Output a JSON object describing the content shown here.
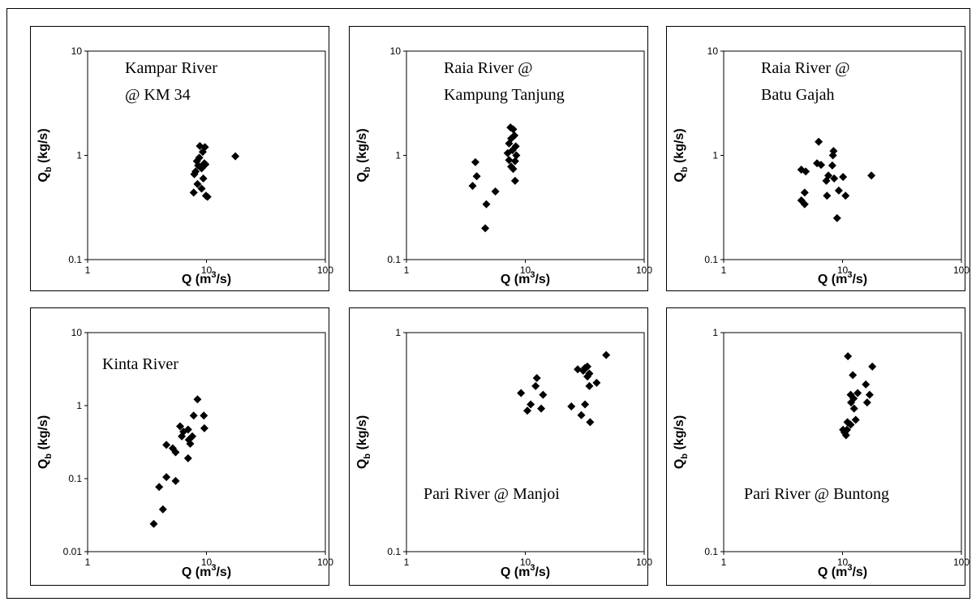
{
  "chart_data": [
    {
      "type": "scatter",
      "annotation": [
        "Kampar River",
        "@ KM 34"
      ],
      "xlabel": "Q (m3/s)",
      "ylabel": "Qb (kg/s)",
      "xscale": "log",
      "yscale": "log",
      "xlim": [
        1,
        100
      ],
      "ylim": [
        0.1,
        10
      ],
      "xticks": [
        "1",
        "10",
        "100"
      ],
      "yticks": [
        "0.1",
        "1",
        "10"
      ],
      "marker": "diamond",
      "color": "#000000",
      "grid": false,
      "points": [
        [
          8.8,
          1.23
        ],
        [
          9.7,
          1.2
        ],
        [
          9.3,
          1.08
        ],
        [
          8.7,
          0.95
        ],
        [
          8.3,
          0.88
        ],
        [
          9.6,
          0.84
        ],
        [
          9.8,
          0.82
        ],
        [
          8.5,
          0.8
        ],
        [
          8.9,
          0.77
        ],
        [
          9.1,
          0.75
        ],
        [
          8.1,
          0.7
        ],
        [
          7.9,
          0.66
        ],
        [
          9.4,
          0.6
        ],
        [
          8.4,
          0.53
        ],
        [
          9.1,
          0.48
        ],
        [
          7.8,
          0.44
        ],
        [
          9.9,
          0.41
        ],
        [
          10.2,
          0.4
        ],
        [
          17.5,
          0.98
        ]
      ]
    },
    {
      "type": "scatter",
      "annotation": [
        "Raia River @",
        "Kampung Tanjung"
      ],
      "xlabel": "Q (m3/s)",
      "ylabel": "Qb (kg/s)",
      "xscale": "log",
      "yscale": "log",
      "xlim": [
        1,
        100
      ],
      "ylim": [
        0.1,
        10
      ],
      "xticks": [
        "1",
        "10",
        "100"
      ],
      "yticks": [
        "0.1",
        "1",
        "10"
      ],
      "marker": "diamond",
      "color": "#000000",
      "grid": false,
      "points": [
        [
          3.8,
          0.86
        ],
        [
          3.9,
          0.63
        ],
        [
          3.6,
          0.51
        ],
        [
          5.6,
          0.45
        ],
        [
          4.7,
          0.34
        ],
        [
          4.6,
          0.2
        ],
        [
          7.5,
          1.85
        ],
        [
          7.9,
          1.78
        ],
        [
          8.1,
          1.55
        ],
        [
          7.6,
          1.45
        ],
        [
          7.3,
          1.3
        ],
        [
          8.3,
          1.22
        ],
        [
          7.8,
          1.12
        ],
        [
          7.1,
          1.05
        ],
        [
          8.4,
          1.0
        ],
        [
          7.3,
          0.9
        ],
        [
          8.2,
          0.88
        ],
        [
          7.6,
          0.78
        ],
        [
          7.9,
          0.74
        ],
        [
          8.2,
          0.57
        ]
      ]
    },
    {
      "type": "scatter",
      "annotation": [
        "Raia River @",
        "Batu Gajah"
      ],
      "xlabel": "Q (m3/s)",
      "ylabel": "Qb (kg/s)",
      "xscale": "log",
      "yscale": "log",
      "xlim": [
        1,
        100
      ],
      "ylim": [
        0.1,
        10
      ],
      "xticks": [
        "1",
        "10",
        "100"
      ],
      "yticks": [
        "0.1",
        "1",
        "10"
      ],
      "marker": "diamond",
      "color": "#000000",
      "grid": false,
      "points": [
        [
          6.3,
          1.35
        ],
        [
          8.4,
          1.1
        ],
        [
          8.3,
          1.0
        ],
        [
          6.1,
          0.84
        ],
        [
          6.6,
          0.81
        ],
        [
          8.2,
          0.8
        ],
        [
          4.5,
          0.73
        ],
        [
          4.9,
          0.7
        ],
        [
          7.6,
          0.64
        ],
        [
          8.5,
          0.6
        ],
        [
          10.1,
          0.62
        ],
        [
          7.3,
          0.57
        ],
        [
          9.3,
          0.46
        ],
        [
          10.6,
          0.41
        ],
        [
          7.4,
          0.41
        ],
        [
          4.8,
          0.44
        ],
        [
          4.5,
          0.37
        ],
        [
          4.8,
          0.34
        ],
        [
          9.0,
          0.25
        ],
        [
          17.5,
          0.64
        ]
      ]
    },
    {
      "type": "scatter",
      "annotation": [
        "Kinta River"
      ],
      "xlabel": "Q (m3/s)",
      "ylabel": "Qb (kg/s)",
      "xscale": "log",
      "yscale": "log",
      "xlim": [
        1,
        100
      ],
      "ylim": [
        0.01,
        10
      ],
      "xticks": [
        "1",
        "10",
        "100"
      ],
      "yticks": [
        "0.01",
        "0.1",
        "1",
        "10"
      ],
      "marker": "diamond",
      "color": "#000000",
      "grid": false,
      "points": [
        [
          8.4,
          1.22
        ],
        [
          7.8,
          0.73
        ],
        [
          9.5,
          0.73
        ],
        [
          6.0,
          0.52
        ],
        [
          7.0,
          0.47
        ],
        [
          9.6,
          0.49
        ],
        [
          6.4,
          0.44
        ],
        [
          6.2,
          0.38
        ],
        [
          7.6,
          0.38
        ],
        [
          7.1,
          0.34
        ],
        [
          7.3,
          0.3
        ],
        [
          4.6,
          0.29
        ],
        [
          5.2,
          0.26
        ],
        [
          5.5,
          0.23
        ],
        [
          7.0,
          0.19
        ],
        [
          4.6,
          0.105
        ],
        [
          5.5,
          0.093
        ],
        [
          4.0,
          0.077
        ],
        [
          4.3,
          0.038
        ],
        [
          3.6,
          0.024
        ]
      ]
    },
    {
      "type": "scatter",
      "annotation": [
        "Pari River @ Manjoi"
      ],
      "xlabel": "Q (m3/s)",
      "ylabel": "Qb (kg/s)",
      "xscale": "log",
      "yscale": "log",
      "xlim": [
        1,
        100
      ],
      "ylim": [
        0.1,
        1
      ],
      "xticks": [
        "1",
        "10",
        "100"
      ],
      "yticks": [
        "0.1",
        "1"
      ],
      "marker": "diamond",
      "color": "#000000",
      "grid": false,
      "points": [
        [
          12.5,
          0.62
        ],
        [
          12.2,
          0.57
        ],
        [
          9.2,
          0.53
        ],
        [
          14.1,
          0.52
        ],
        [
          11.1,
          0.47
        ],
        [
          10.4,
          0.44
        ],
        [
          13.6,
          0.45
        ],
        [
          27.6,
          0.68
        ],
        [
          31.8,
          0.69
        ],
        [
          33.3,
          0.7
        ],
        [
          30.7,
          0.67
        ],
        [
          34.6,
          0.65
        ],
        [
          33.3,
          0.63
        ],
        [
          34.6,
          0.57
        ],
        [
          39.8,
          0.59
        ],
        [
          47.9,
          0.79
        ],
        [
          24.4,
          0.46
        ],
        [
          31.8,
          0.47
        ],
        [
          29.6,
          0.42
        ],
        [
          35.1,
          0.39
        ]
      ]
    },
    {
      "type": "scatter",
      "annotation": [
        "Pari River @ Buntong"
      ],
      "xlabel": "Q (m3/s)",
      "ylabel": "Qb (kg/s)",
      "xscale": "log",
      "yscale": "log",
      "xlim": [
        1,
        100
      ],
      "ylim": [
        0.1,
        1
      ],
      "xticks": [
        "1",
        "10",
        "100"
      ],
      "yticks": [
        "0.1",
        "1"
      ],
      "marker": "diamond",
      "color": "#000000",
      "grid": false,
      "points": [
        [
          11.1,
          0.78
        ],
        [
          17.8,
          0.7
        ],
        [
          12.2,
          0.64
        ],
        [
          15.7,
          0.58
        ],
        [
          13.4,
          0.53
        ],
        [
          11.7,
          0.52
        ],
        [
          16.9,
          0.52
        ],
        [
          12.4,
          0.5
        ],
        [
          11.8,
          0.48
        ],
        [
          16.1,
          0.48
        ],
        [
          12.5,
          0.45
        ],
        [
          12.9,
          0.4
        ],
        [
          11.0,
          0.39
        ],
        [
          11.7,
          0.38
        ],
        [
          10.1,
          0.36
        ],
        [
          10.4,
          0.35
        ],
        [
          10.9,
          0.36
        ],
        [
          10.7,
          0.34
        ]
      ]
    }
  ]
}
